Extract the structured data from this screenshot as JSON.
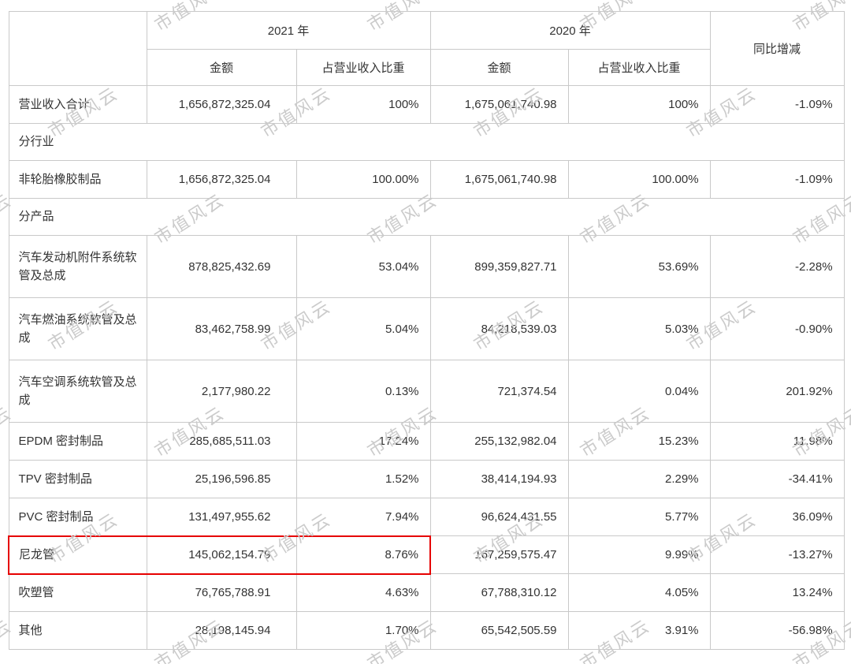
{
  "watermark": {
    "text": "市值风云",
    "color": "#cbcbcb"
  },
  "table": {
    "highlight_color": "#e60000",
    "header": {
      "year_2021": "2021 年",
      "year_2020": "2020 年",
      "yoy": "同比增减",
      "amount": "金额",
      "share": "占营业收入比重"
    },
    "rows": [
      {
        "type": "data",
        "label": "营业收入合计",
        "a2021": "1,656,872,325.04",
        "s2021": "100%",
        "a2020": "1,675,061,740.98",
        "s2020": "100%",
        "yoy": "-1.09%"
      },
      {
        "type": "section",
        "label": "分行业"
      },
      {
        "type": "data",
        "label": "非轮胎橡胶制品",
        "a2021": "1,656,872,325.04",
        "s2021": "100.00%",
        "a2020": "1,675,061,740.98",
        "s2020": "100.00%",
        "yoy": "-1.09%"
      },
      {
        "type": "section",
        "label": "分产品"
      },
      {
        "type": "data",
        "tall": true,
        "label": "汽车发动机附件系统软管及总成",
        "a2021": "878,825,432.69",
        "s2021": "53.04%",
        "a2020": "899,359,827.71",
        "s2020": "53.69%",
        "yoy": "-2.28%"
      },
      {
        "type": "data",
        "tall": true,
        "label": "汽车燃油系统软管及总成",
        "a2021": "83,462,758.99",
        "s2021": "5.04%",
        "a2020": "84,218,539.03",
        "s2020": "5.03%",
        "yoy": "-0.90%"
      },
      {
        "type": "data",
        "tall": true,
        "label": "汽车空调系统软管及总成",
        "a2021": "2,177,980.22",
        "s2021": "0.13%",
        "a2020": "721,374.54",
        "s2020": "0.04%",
        "yoy": "201.92%"
      },
      {
        "type": "data",
        "label": "EPDM 密封制品",
        "a2021": "285,685,511.03",
        "s2021": "17.24%",
        "a2020": "255,132,982.04",
        "s2020": "15.23%",
        "yoy": "11.98%"
      },
      {
        "type": "data",
        "label": "TPV 密封制品",
        "a2021": "25,196,596.85",
        "s2021": "1.52%",
        "a2020": "38,414,194.93",
        "s2020": "2.29%",
        "yoy": "-34.41%"
      },
      {
        "type": "data",
        "label": "PVC 密封制品",
        "a2021": "131,497,955.62",
        "s2021": "7.94%",
        "a2020": "96,624,431.55",
        "s2020": "5.77%",
        "yoy": "36.09%"
      },
      {
        "type": "data",
        "highlighted": true,
        "label": "尼龙管",
        "a2021": "145,062,154.79",
        "s2021": "8.76%",
        "a2020": "167,259,575.47",
        "s2020": "9.99%",
        "yoy": "-13.27%"
      },
      {
        "type": "data",
        "label": "吹塑管",
        "a2021": "76,765,788.91",
        "s2021": "4.63%",
        "a2020": "67,788,310.12",
        "s2020": "4.05%",
        "yoy": "13.24%"
      },
      {
        "type": "data",
        "label": "其他",
        "a2021": "28,198,145.94",
        "s2021": "1.70%",
        "a2020": "65,542,505.59",
        "s2020": "3.91%",
        "yoy": "-56.98%"
      }
    ]
  }
}
